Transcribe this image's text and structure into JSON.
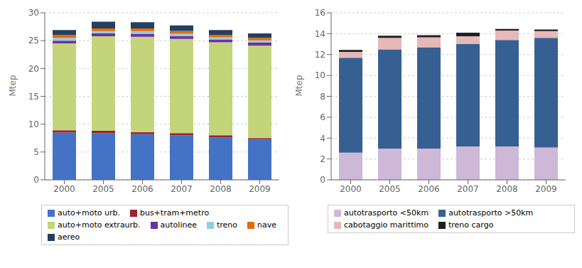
{
  "chart_data": [
    {
      "type": "bar",
      "stacked": true,
      "grid": true,
      "legend": "bottom",
      "ylabel": "Mtep",
      "categories": [
        "2000",
        "2005",
        "2006",
        "2007",
        "2008",
        "2009"
      ],
      "ylim": [
        0,
        30
      ],
      "yticks": [
        0,
        5,
        10,
        15,
        20,
        25,
        30
      ],
      "series": [
        {
          "name": "auto+moto urb.",
          "color": "#4472C4",
          "values": [
            8.5,
            8.4,
            8.2,
            8.0,
            7.6,
            7.2
          ]
        },
        {
          "name": "bus+tram+metro",
          "color": "#9B2335",
          "values": [
            0.4,
            0.4,
            0.4,
            0.4,
            0.4,
            0.3
          ]
        },
        {
          "name": "auto+moto extraurb.",
          "color": "#C4D47B",
          "values": [
            15.6,
            17.0,
            17.1,
            16.9,
            16.7,
            16.6
          ]
        },
        {
          "name": "autolinee",
          "color": "#7030A0",
          "values": [
            0.5,
            0.5,
            0.55,
            0.5,
            0.5,
            0.55
          ]
        },
        {
          "name": "treno",
          "color": "#92CDDC",
          "values": [
            0.5,
            0.4,
            0.45,
            0.45,
            0.4,
            0.4
          ]
        },
        {
          "name": "nave",
          "color": "#E36C09",
          "values": [
            0.5,
            0.5,
            0.5,
            0.5,
            0.45,
            0.45
          ]
        },
        {
          "name": "aereo",
          "color": "#243F60",
          "values": [
            0.9,
            1.2,
            1.1,
            1.0,
            0.85,
            0.8
          ]
        }
      ]
    },
    {
      "type": "bar",
      "stacked": true,
      "grid": true,
      "legend": "bottom",
      "ylabel": "Mtep",
      "categories": [
        "2000",
        "2005",
        "2006",
        "2007",
        "2008",
        "2009"
      ],
      "ylim": [
        0,
        16
      ],
      "yticks": [
        0,
        2,
        4,
        6,
        8,
        10,
        12,
        14,
        16
      ],
      "series": [
        {
          "name": "autotrasporto <50km",
          "color": "#CDB8D8",
          "values": [
            2.6,
            3.0,
            3.0,
            3.2,
            3.2,
            3.1
          ]
        },
        {
          "name": "autotrasporto >50km",
          "color": "#366092",
          "values": [
            9.1,
            9.5,
            9.7,
            9.8,
            10.2,
            10.5
          ]
        },
        {
          "name": "cabotaggio marittimo",
          "color": "#E6B8B7",
          "values": [
            0.55,
            1.1,
            0.95,
            0.75,
            0.9,
            0.65
          ]
        },
        {
          "name": "treno cargo",
          "color": "#1F1F1F",
          "values": [
            0.2,
            0.2,
            0.2,
            0.35,
            0.15,
            0.15
          ]
        }
      ]
    }
  ]
}
